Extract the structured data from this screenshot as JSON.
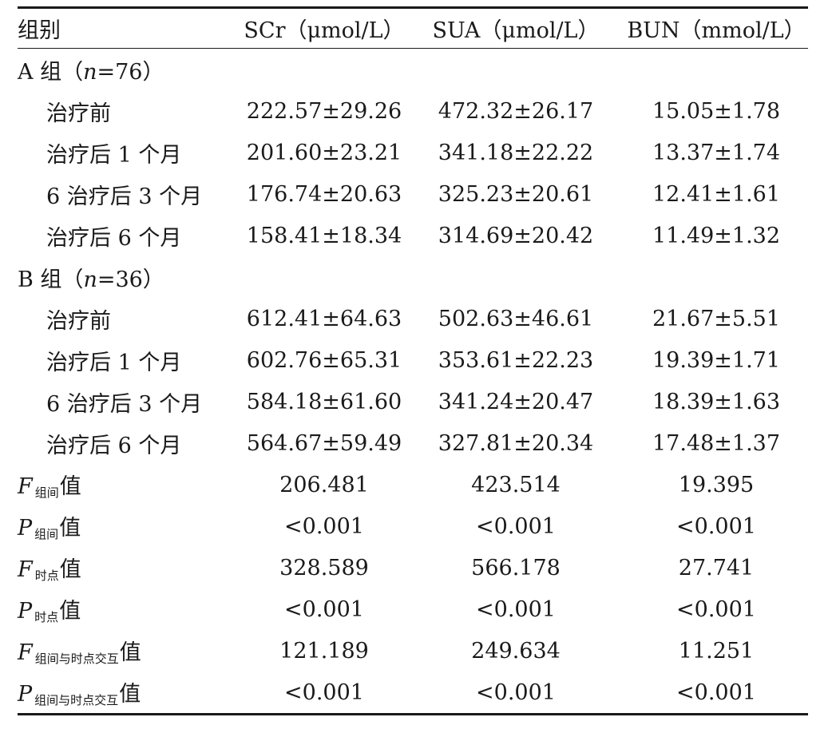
{
  "header": {
    "group": "组别",
    "scr": "SCr（μmol/L）",
    "sua": "SUA（μmol/L）",
    "bun": "BUN（mmol/L）"
  },
  "groupA": {
    "prefix": "A 组（",
    "n": "n",
    "suffix": "=76）",
    "rows": [
      {
        "label": "治疗前",
        "scr": "222.57±29.26",
        "sua": "472.32±26.17",
        "bun": "15.05±1.78"
      },
      {
        "label": "治疗后 1 个月",
        "scr": "201.60±23.21",
        "sua": "341.18±22.22",
        "bun": "13.37±1.74"
      },
      {
        "label": "6 治疗后 3 个月",
        "scr": "176.74±20.63",
        "sua": "325.23±20.61",
        "bun": "12.41±1.61"
      },
      {
        "label": "治疗后 6 个月",
        "scr": "158.41±18.34",
        "sua": "314.69±20.42",
        "bun": "11.49±1.32"
      }
    ]
  },
  "groupB": {
    "prefix": "B 组（",
    "n": "n",
    "suffix": "=36）",
    "rows": [
      {
        "label": "治疗前",
        "scr": "612.41±64.63",
        "sua": "502.63±46.61",
        "bun": "21.67±5.51"
      },
      {
        "label": "治疗后 1 个月",
        "scr": "602.76±65.31",
        "sua": "353.61±22.23",
        "bun": "19.39±1.71"
      },
      {
        "label": "6 治疗后 3 个月",
        "scr": "584.18±61.60",
        "sua": "341.24±20.47",
        "bun": "18.39±1.63"
      },
      {
        "label": "治疗后 6 个月",
        "scr": "564.67±59.49",
        "sua": "327.81±20.34",
        "bun": "17.48±1.37"
      }
    ]
  },
  "stats": [
    {
      "letter": "F",
      "sub": "组间",
      "tail": "值",
      "scr": "206.481",
      "sua": "423.514",
      "bun": "19.395"
    },
    {
      "letter": "P",
      "sub": "组间",
      "tail": "值",
      "scr": "<0.001",
      "sua": "<0.001",
      "bun": "<0.001"
    },
    {
      "letter": "F",
      "sub": "时点",
      "tail": "值",
      "scr": "328.589",
      "sua": "566.178",
      "bun": "27.741"
    },
    {
      "letter": "P",
      "sub": "时点",
      "tail": "值",
      "scr": "<0.001",
      "sua": "<0.001",
      "bun": "<0.001"
    },
    {
      "letter": "F",
      "sub": "组间与时点交互",
      "tail": "值",
      "scr": "121.189",
      "sua": "249.634",
      "bun": "11.251"
    },
    {
      "letter": "P",
      "sub": "组间与时点交互",
      "tail": "值",
      "scr": "<0.001",
      "sua": "<0.001",
      "bun": "<0.001"
    }
  ]
}
